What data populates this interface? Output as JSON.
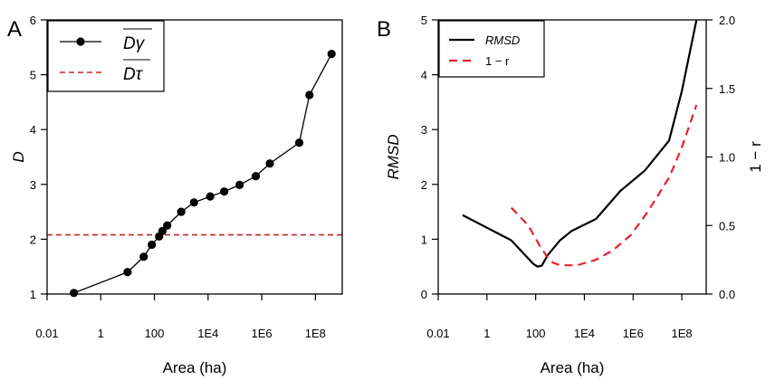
{
  "chart_data": [
    {
      "panel_label": "A",
      "type": "line",
      "xlabel": "Area (ha)",
      "ylabel": "D",
      "x_scale": "log10",
      "xlim": [
        0.01,
        1000000000
      ],
      "ylim": [
        1,
        6
      ],
      "x_ticks": [
        {
          "value": 0.01,
          "label": "0.01"
        },
        {
          "value": 1,
          "label": "1"
        },
        {
          "value": 100,
          "label": "100"
        },
        {
          "value": 10000,
          "label": "1E4"
        },
        {
          "value": 1000000,
          "label": "1E6"
        },
        {
          "value": 100000000,
          "label": "1E8"
        }
      ],
      "y_ticks": [
        {
          "value": 1,
          "label": "1"
        },
        {
          "value": 2,
          "label": "2"
        },
        {
          "value": 3,
          "label": "3"
        },
        {
          "value": 4,
          "label": "4"
        },
        {
          "value": 5,
          "label": "5"
        },
        {
          "value": 6,
          "label": "6"
        }
      ],
      "legend_position": "top-left",
      "series": [
        {
          "name": "Dγ",
          "style": "solid-line-with-points",
          "color": "#000000",
          "x": [
            0.1,
            10,
            40,
            80,
            150,
            200,
            300,
            1000,
            3000,
            12000,
            40000,
            150000,
            600000,
            2000000,
            25000000,
            60000000,
            400000000
          ],
          "y": [
            1.02,
            1.4,
            1.68,
            1.9,
            2.05,
            2.15,
            2.25,
            2.5,
            2.67,
            2.78,
            2.87,
            2.99,
            3.15,
            3.38,
            3.76,
            4.63,
            5.38
          ]
        },
        {
          "name": "Dτ",
          "style": "dashed-horizontal",
          "color": "#c0262d",
          "y_constant": 2.08
        }
      ]
    },
    {
      "panel_label": "B",
      "type": "line",
      "xlabel": "Area (ha)",
      "ylabel": "RMSD",
      "y2label": "1 − r",
      "x_scale": "log10",
      "xlim": [
        0.01,
        1000000000
      ],
      "ylim": [
        0,
        5
      ],
      "y2lim": [
        0,
        2
      ],
      "x_ticks": [
        {
          "value": 0.01,
          "label": "0.01"
        },
        {
          "value": 1,
          "label": "1"
        },
        {
          "value": 100,
          "label": "100"
        },
        {
          "value": 10000,
          "label": "1E4"
        },
        {
          "value": 1000000,
          "label": "1E6"
        },
        {
          "value": 100000000,
          "label": "1E8"
        }
      ],
      "y_ticks": [
        {
          "value": 0,
          "label": "0"
        },
        {
          "value": 1,
          "label": "1"
        },
        {
          "value": 2,
          "label": "2"
        },
        {
          "value": 3,
          "label": "3"
        },
        {
          "value": 4,
          "label": "4"
        },
        {
          "value": 5,
          "label": "5"
        }
      ],
      "y2_ticks": [
        {
          "value": 0,
          "label": "0.0"
        },
        {
          "value": 0.5,
          "label": "0.5"
        },
        {
          "value": 1,
          "label": "1.0"
        },
        {
          "value": 1.5,
          "label": "1.5"
        },
        {
          "value": 2,
          "label": "2.0"
        }
      ],
      "legend_position": "top-left",
      "series": [
        {
          "name": "RMSD",
          "axis": "left",
          "style": "solid",
          "color": "#000000",
          "x": [
            0.1,
            10,
            80,
            120,
            180,
            300,
            1000,
            3000,
            30000,
            300000,
            3000000,
            30000000,
            100000000,
            400000000
          ],
          "y": [
            1.44,
            0.98,
            0.55,
            0.5,
            0.52,
            0.7,
            0.98,
            1.15,
            1.37,
            1.88,
            2.25,
            2.8,
            3.7,
            5.0
          ]
        },
        {
          "name": "1 − r",
          "axis": "right",
          "style": "dashed",
          "color": "#e8202a",
          "x": [
            10,
            50,
            150,
            300,
            500,
            1000,
            5000,
            30000,
            150000,
            800000,
            4000000,
            30000000,
            100000000,
            400000000
          ],
          "y": [
            0.63,
            0.5,
            0.35,
            0.27,
            0.23,
            0.21,
            0.21,
            0.25,
            0.32,
            0.43,
            0.6,
            0.85,
            1.07,
            1.38
          ]
        }
      ]
    }
  ]
}
